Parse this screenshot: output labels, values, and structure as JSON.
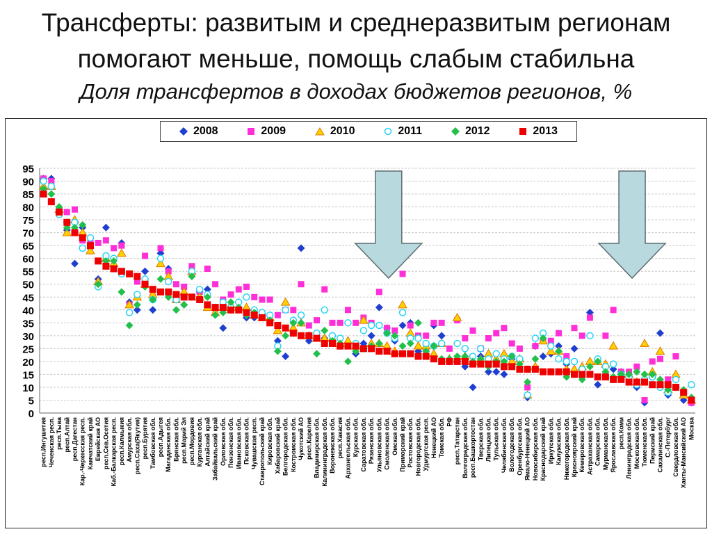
{
  "title": {
    "line1": "Трансферты: развитым и среднеразвитым регионам",
    "line2": "помогают меньше, помощь слабым стабильна",
    "line3": "Доля трансфертов в доходах бюджетов регионов, %"
  },
  "colors": {
    "s2008": "#1f3fd0",
    "s2009": "#ff2fd8",
    "s2010": "#ffd000",
    "s2010_edge": "#e07800",
    "s2011": "#26d4f4",
    "s2012": "#22c04a",
    "s2013": "#ee0000",
    "arrow_fill": "#b8dadf",
    "arrow_edge": "#5e6c70"
  },
  "chart_data": {
    "type": "scatter",
    "title": "Доля трансфертов в доходах бюджетов регионов, %",
    "xlabel": "",
    "ylabel": "",
    "ylim": [
      0,
      95
    ],
    "yticks": [
      "0",
      "5",
      "10",
      "15",
      "20",
      "25",
      "30",
      "35",
      "40",
      "45",
      "50",
      "55",
      "60",
      "65",
      "70",
      "75",
      "80",
      "85",
      "90",
      "95"
    ],
    "grid": true,
    "legend_position": "top",
    "annotations": [
      "down-arrow",
      "down-arrow"
    ],
    "categories": [
      "респ.Ингушетия",
      "Чеченская респ.",
      "респ.Тыва",
      "респ.Алтай",
      "респ.Дагестан",
      "Кар.-Черкесская респ.",
      "Камчатский край",
      "Еврейская АО",
      "респ.Сев.Осетия",
      "Каб.-Балкарская респ.",
      "респ.Калмыкия",
      "Амурская обл.",
      "респ.Саха(Якутия)",
      "респ.Бурятия",
      "Тамбовская обл.",
      "респ.Адыгея",
      "Магаданская обл.",
      "Брянская обл.",
      "респ.Марий Эл",
      "респ.Мордовия",
      "Курганская обл.",
      "Алтайский край",
      "Забайкальский край",
      "Орловская обл.",
      "Пензенская обл.",
      "Ивановская обл.",
      "Псковская обл.",
      "Чувашская респ.",
      "Ставропольский край",
      "Кировская обл.",
      "Хабаровский край",
      "Белгородская обл.",
      "Костромская обл.",
      "Чукотский АО",
      "респ.Карелия",
      "Владимирская обл.",
      "Калининградская обл.",
      "Воронежская обл.",
      "респ.Хакасия",
      "Архангельская обл.",
      "Курская обл.",
      "Саратовская обл.",
      "Рязанская обл.",
      "Ульяновская обл.",
      "Смоленская обл.",
      "Омская обл.",
      "Приморский край",
      "Ростовская обл.",
      "Новгородская обл.",
      "Удмуртская респ.",
      "Ненецкий АО",
      "Томская обл.",
      "РФ",
      "респ.Татарстан",
      "Волгоградская обл.",
      "респ.Башкортостан",
      "Тверская обл.",
      "Липецкая обл.",
      "Тульская обл.",
      "Челябинская обл.",
      "Вологодская обл.",
      "Оренбургская обл.",
      "Ямало-Ненецкий АО",
      "Новосибирская обл.",
      "Краснодарский край",
      "Иркутская обл.",
      "Калужская обл.",
      "Нижегородская обл.",
      "Красноярский край",
      "Кемеровская обл.",
      "Астраханская обл.",
      "Самарская обл.",
      "Мурманская обл.",
      "Ярославская обл.",
      "респ.Коми",
      "Ленинградская обл.",
      "Московская обл.",
      "Тюменская обл.",
      "Пермский край",
      "Сахалинская обл.",
      "С.-Петербург",
      "Свердловская обл.",
      "Ханты-Мансийский АО",
      "Москва"
    ],
    "series": [
      {
        "name": "2008",
        "values": [
          91,
          91,
          79,
          71,
          58,
          72,
          64,
          52,
          72,
          57,
          66,
          43,
          40,
          55,
          40,
          62,
          56,
          44,
          42,
          54,
          47,
          48,
          40,
          33,
          40,
          43,
          37,
          37,
          38,
          36,
          28,
          22,
          31,
          64,
          28,
          31,
          29,
          30,
          26,
          27,
          23,
          27,
          30,
          41,
          33,
          28,
          34,
          35,
          24,
          25,
          34,
          30,
          20,
          20,
          18,
          10,
          22,
          16,
          16,
          15,
          21,
          21,
          6,
          26,
          22,
          23,
          26,
          19,
          25,
          14,
          39,
          11,
          16,
          17,
          16,
          14,
          10,
          4,
          14,
          31,
          7,
          10,
          5,
          4
        ]
      },
      {
        "name": "2009",
        "values": [
          91,
          90,
          79,
          78,
          79,
          67,
          67,
          66,
          67,
          64,
          65,
          42,
          51,
          61,
          45,
          64,
          55,
          50,
          49,
          57,
          47,
          56,
          50,
          44,
          46,
          48,
          49,
          45,
          44,
          44,
          38,
          40,
          40,
          50,
          34,
          36,
          48,
          35,
          35,
          40,
          35,
          37,
          35,
          47,
          33,
          32,
          54,
          34,
          30,
          30,
          35,
          35,
          25,
          36,
          29,
          32,
          25,
          29,
          31,
          33,
          27,
          25,
          10,
          26,
          28,
          28,
          31,
          22,
          33,
          30,
          37,
          20,
          30,
          40,
          16,
          16,
          18,
          5,
          20,
          21,
          13,
          22,
          8,
          4
        ]
      },
      {
        "name": "2010",
        "values": [
          88,
          88,
          79,
          70,
          75,
          70,
          63,
          51,
          60,
          58,
          62,
          42,
          45,
          50,
          46,
          58,
          53,
          44,
          47,
          55,
          45,
          41,
          39,
          41,
          42,
          41,
          41,
          38,
          37,
          37,
          32,
          43,
          33,
          35,
          30,
          29,
          29,
          29,
          27,
          28,
          26,
          36,
          27,
          27,
          26,
          24,
          42,
          31,
          26,
          26,
          23,
          27,
          21,
          37,
          22,
          20,
          21,
          23,
          21,
          23,
          20,
          21,
          7,
          18,
          28,
          24,
          24,
          17,
          17,
          18,
          20,
          20,
          19,
          26,
          15,
          15,
          12,
          27,
          16,
          24,
          9,
          15,
          7,
          5
        ]
      },
      {
        "name": "2011",
        "values": [
          90,
          88,
          77,
          74,
          74,
          64,
          68,
          49,
          61,
          60,
          54,
          39,
          46,
          52,
          44,
          60,
          51,
          44,
          45,
          55,
          48,
          46,
          41,
          43,
          41,
          43,
          45,
          40,
          39,
          38,
          26,
          40,
          36,
          38,
          30,
          31,
          40,
          30,
          29,
          35,
          27,
          32,
          34,
          34,
          31,
          29,
          39,
          29,
          29,
          27,
          26,
          27,
          20,
          27,
          25,
          22,
          25,
          21,
          23,
          21,
          22,
          21,
          7,
          29,
          31,
          26,
          21,
          20,
          20,
          17,
          30,
          21,
          18,
          19,
          15,
          14,
          11,
          13,
          14,
          10,
          8,
          13,
          8,
          11
        ]
      },
      {
        "name": "2012",
        "values": [
          87,
          85,
          80,
          72,
          72,
          73,
          65,
          50,
          59,
          59,
          47,
          34,
          42,
          49,
          44,
          52,
          45,
          40,
          42,
          53,
          44,
          45,
          38,
          39,
          43,
          41,
          38,
          39,
          37,
          36,
          24,
          30,
          35,
          35,
          30,
          23,
          32,
          28,
          27,
          20,
          24,
          25,
          26,
          27,
          31,
          30,
          26,
          27,
          35,
          24,
          26,
          21,
          21,
          22,
          22,
          20,
          21,
          18,
          20,
          20,
          22,
          19,
          12,
          21,
          29,
          16,
          24,
          14,
          15,
          13,
          18,
          20,
          16,
          14,
          15,
          15,
          16,
          15,
          15,
          13,
          9,
          10,
          9,
          6
        ]
      },
      {
        "name": "2013",
        "values": [
          85,
          82,
          78,
          74,
          70,
          68,
          65,
          59,
          57,
          56,
          55,
          54,
          53,
          50,
          48,
          47,
          47,
          46,
          45,
          45,
          44,
          42,
          41,
          41,
          40,
          40,
          39,
          38,
          37,
          35,
          34,
          33,
          31,
          30,
          30,
          29,
          27,
          27,
          26,
          26,
          26,
          25,
          25,
          24,
          24,
          23,
          23,
          23,
          22,
          22,
          21,
          20,
          20,
          20,
          20,
          19,
          19,
          19,
          19,
          18,
          18,
          17,
          17,
          17,
          16,
          16,
          16,
          16,
          15,
          15,
          15,
          14,
          14,
          13,
          13,
          12,
          12,
          12,
          11,
          11,
          11,
          10,
          8,
          5
        ]
      }
    ]
  }
}
